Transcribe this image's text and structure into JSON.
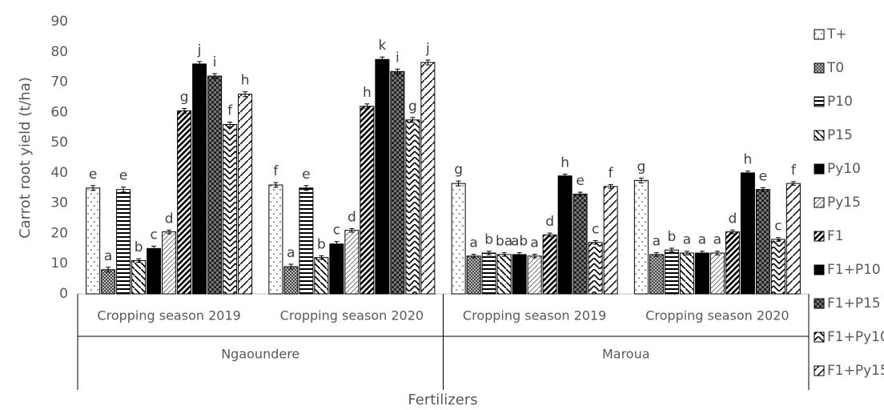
{
  "chart_data": {
    "type": "bar",
    "y_label": "Carrot root yield (t/ha)",
    "x_label": "Fertilizers",
    "groups": [
      {
        "label": "Ngaoundere",
        "categories": [
          "Cropping season 2019",
          "Cropping season 2020"
        ]
      },
      {
        "label": "Maroua",
        "categories": [
          "Cropping season 2019",
          "Cropping season 2020"
        ]
      }
    ],
    "ylim": [
      0,
      90
    ],
    "yticks": [
      0,
      10,
      20,
      30,
      40,
      50,
      60,
      70,
      80,
      90
    ],
    "legend": "right",
    "series": [
      {
        "name": "T+",
        "color": "#ffffff",
        "pattern": "dots",
        "values": [
          35,
          36,
          36.5,
          37.5
        ],
        "errors": [
          0.8,
          0.8,
          0.8,
          0.8
        ],
        "letters": [
          "e",
          "f",
          "g",
          "g"
        ]
      },
      {
        "name": "T0",
        "color": "#7f7f7f",
        "pattern": "check",
        "values": [
          8,
          9,
          12.5,
          13
        ],
        "errors": [
          0.8,
          0.8,
          0.6,
          0.6
        ],
        "letters": [
          "a",
          "a",
          "a",
          "a"
        ]
      },
      {
        "name": "P10",
        "color": "#ffffff",
        "pattern": "hstripe",
        "values": [
          34.5,
          35,
          13.5,
          14.5
        ],
        "errors": [
          0.8,
          0.8,
          0.6,
          0.6
        ],
        "letters": [
          "e",
          "e",
          "b",
          "b"
        ]
      },
      {
        "name": "P15",
        "color": "#ffffff",
        "pattern": "dash",
        "values": [
          11,
          12,
          13,
          13.5
        ],
        "errors": [
          0.6,
          0.6,
          0.6,
          0.6
        ],
        "letters": [
          "b",
          "b",
          "ba",
          "a"
        ]
      },
      {
        "name": "Py10",
        "color": "#000000",
        "pattern": "solid",
        "values": [
          15,
          16.5,
          13,
          13.5
        ],
        "errors": [
          0.8,
          0.8,
          0.6,
          0.6
        ],
        "letters": [
          "c",
          "c",
          "ab",
          "a"
        ]
      },
      {
        "name": "Py15",
        "color": "#ffffff",
        "pattern": "thindiag",
        "values": [
          20.5,
          21,
          12.5,
          13.5
        ],
        "errors": [
          0.6,
          0.6,
          0.6,
          0.6
        ],
        "letters": [
          "d",
          "d",
          "a",
          "a"
        ]
      },
      {
        "name": "F1",
        "color": "#ffffff",
        "pattern": "diag",
        "values": [
          60.5,
          62,
          19.5,
          20.5
        ],
        "errors": [
          0.8,
          0.8,
          0.6,
          0.6
        ],
        "letters": [
          "g",
          "h",
          "d",
          "d"
        ]
      },
      {
        "name": "F1+P10",
        "color": "#000000",
        "pattern": "solid",
        "values": [
          76,
          77.5,
          39,
          40
        ],
        "errors": [
          0.8,
          0.8,
          0.6,
          0.6
        ],
        "letters": [
          "j",
          "k",
          "h",
          "h"
        ]
      },
      {
        "name": "F1+P15",
        "color": "#595959",
        "pattern": "darkcheck",
        "values": [
          72,
          73.5,
          33,
          34.5
        ],
        "errors": [
          0.8,
          0.8,
          0.6,
          0.6
        ],
        "letters": [
          "i",
          "i",
          "e",
          "e"
        ]
      },
      {
        "name": "F1+Py10",
        "color": "#ffffff",
        "pattern": "wave",
        "values": [
          56,
          57.5,
          17,
          18
        ],
        "errors": [
          0.8,
          0.8,
          0.6,
          0.6
        ],
        "letters": [
          "f",
          "g",
          "c",
          "c"
        ]
      },
      {
        "name": "F1+Py15",
        "color": "#ffffff",
        "pattern": "bigdiag",
        "values": [
          66,
          76.5,
          35.5,
          36.5
        ],
        "errors": [
          0.8,
          0.8,
          0.6,
          0.6
        ],
        "letters": [
          "h",
          "j",
          "f",
          "f"
        ]
      }
    ]
  }
}
